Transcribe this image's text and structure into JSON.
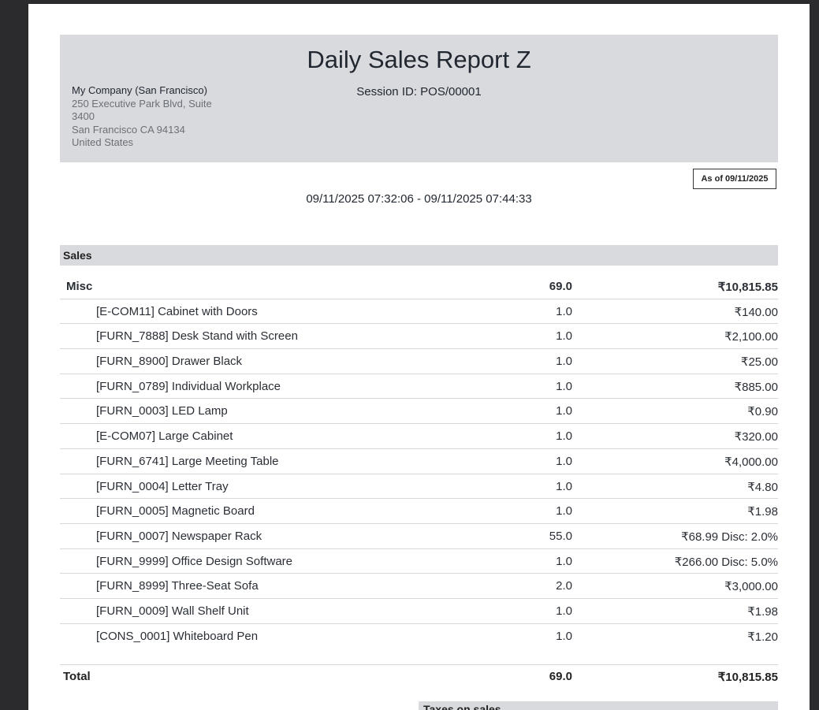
{
  "report": {
    "title": "Daily Sales Report Z",
    "session_id": "Session ID: POS/00001",
    "as_of": "As of 09/11/2025",
    "period": "09/11/2025 07:32:06 - 09/11/2025 07:44:33"
  },
  "company": {
    "name": "My Company (San Francisco)",
    "address_line1": "250 Executive Park Blvd, Suite",
    "address_line2": "3400",
    "address_line3": "San Francisco CA 94134",
    "country": "United States"
  },
  "sales": {
    "section_label": "Sales",
    "category": {
      "label": "Misc",
      "qty": "69.0",
      "amount": "₹10,815.85"
    },
    "lines": [
      {
        "label": "[E-COM11] Cabinet with Doors",
        "qty": "1.0",
        "amount": "₹140.00"
      },
      {
        "label": "[FURN_7888] Desk Stand with Screen",
        "qty": "1.0",
        "amount": "₹2,100.00"
      },
      {
        "label": "[FURN_8900] Drawer Black",
        "qty": "1.0",
        "amount": "₹25.00"
      },
      {
        "label": "[FURN_0789] Individual Workplace",
        "qty": "1.0",
        "amount": "₹885.00"
      },
      {
        "label": "[FURN_0003] LED Lamp",
        "qty": "1.0",
        "amount": "₹0.90"
      },
      {
        "label": "[E-COM07] Large Cabinet",
        "qty": "1.0",
        "amount": "₹320.00"
      },
      {
        "label": "[FURN_6741] Large Meeting Table",
        "qty": "1.0",
        "amount": "₹4,000.00"
      },
      {
        "label": "[FURN_0004] Letter Tray",
        "qty": "1.0",
        "amount": "₹4.80"
      },
      {
        "label": "[FURN_0005] Magnetic Board",
        "qty": "1.0",
        "amount": "₹1.98"
      },
      {
        "label": "[FURN_0007] Newspaper Rack",
        "qty": "55.0",
        "amount": "₹68.99 Disc: 2.0%"
      },
      {
        "label": "[FURN_9999] Office Design Software",
        "qty": "1.0",
        "amount": "₹266.00 Disc: 5.0%"
      },
      {
        "label": "[FURN_8999] Three-Seat Sofa",
        "qty": "2.0",
        "amount": "₹3,000.00"
      },
      {
        "label": "[FURN_0009] Wall Shelf Unit",
        "qty": "1.0",
        "amount": "₹1.98"
      },
      {
        "label": "[CONS_0001] Whiteboard Pen",
        "qty": "1.0",
        "amount": "₹1.20"
      }
    ],
    "total": {
      "label": "Total",
      "qty": "69.0",
      "amount": "₹10,815.85"
    }
  },
  "taxes": {
    "section_label": "Taxes on sales"
  }
}
